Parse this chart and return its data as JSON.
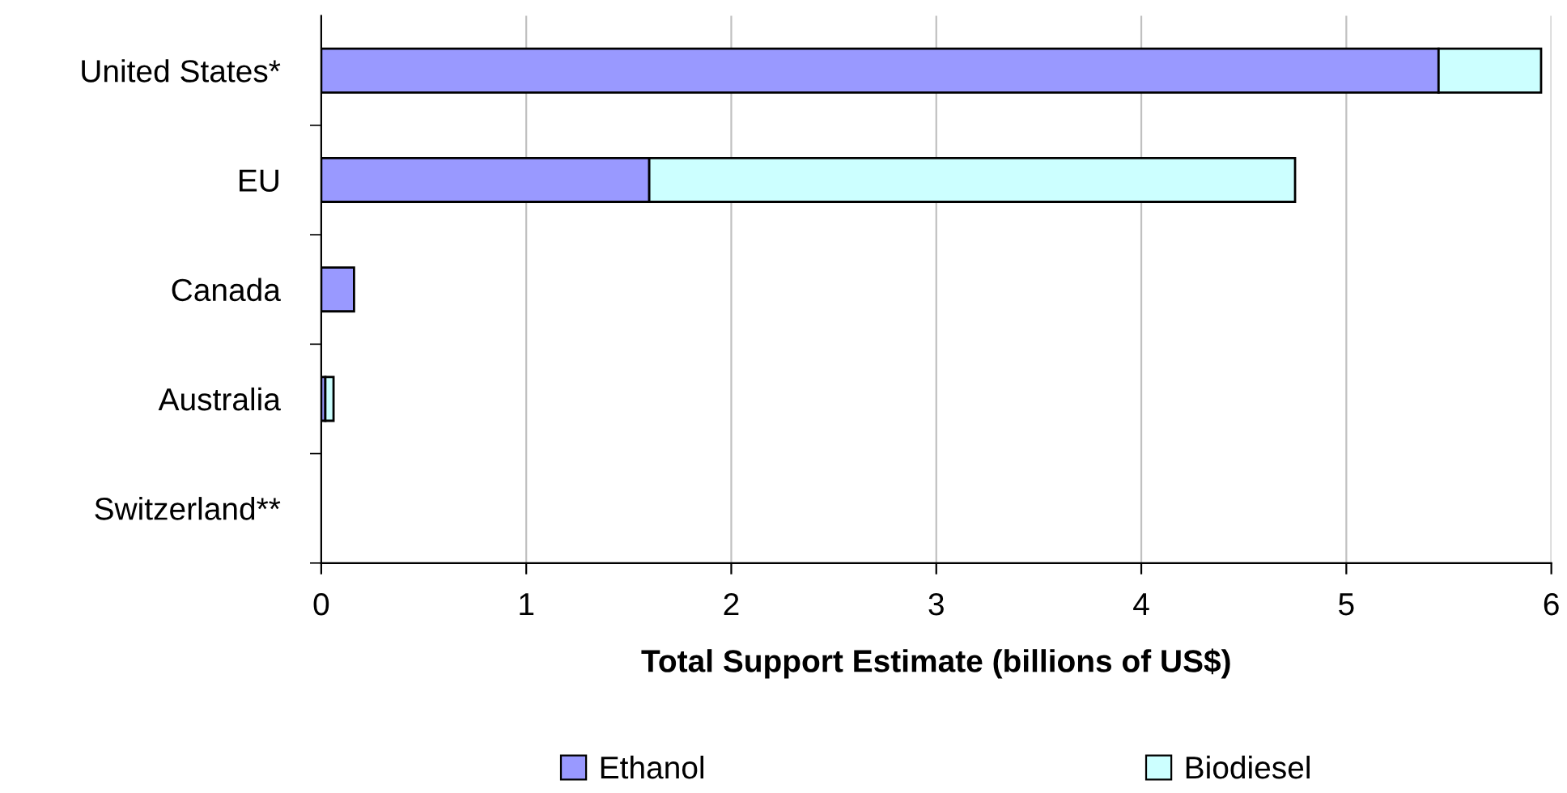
{
  "chart_data": {
    "type": "bar",
    "orientation": "horizontal",
    "stacked": true,
    "xlabel": "Total Support Estimate (billions of US$)",
    "categories": [
      "United States*",
      "EU",
      "Canada",
      "Australia",
      "Switzerland**"
    ],
    "series": [
      {
        "name": "Ethanol",
        "color": "#9999ff",
        "values": [
          5.45,
          1.6,
          0.16,
          0.02,
          null
        ]
      },
      {
        "name": "Biodiesel",
        "color": "#ccffff",
        "values": [
          0.5,
          3.15,
          null,
          0.04,
          null
        ]
      }
    ],
    "xlim": [
      0,
      6
    ],
    "xticks": [
      0,
      1,
      2,
      3,
      4,
      5,
      6
    ],
    "grid": "x",
    "legend": "bottom"
  }
}
